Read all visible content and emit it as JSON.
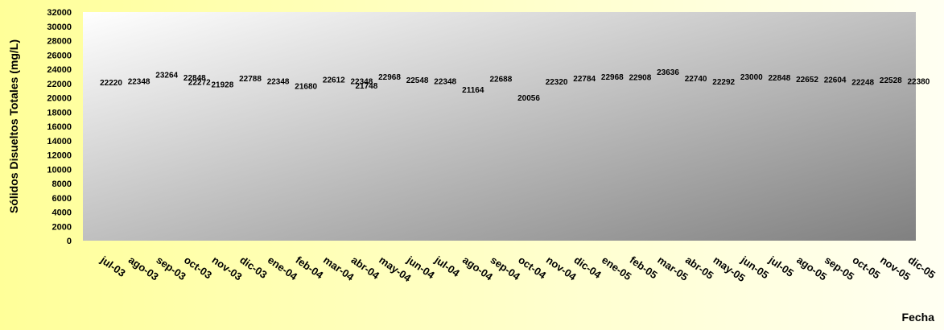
{
  "chart_data": {
    "type": "line",
    "title": "",
    "xlabel": "Fecha",
    "ylabel": "Sólidos Disueltos Totales (mg/L)",
    "ylim": [
      0,
      32000
    ],
    "yticks": [
      0,
      2000,
      4000,
      6000,
      8000,
      10000,
      12000,
      14000,
      16000,
      18000,
      20000,
      22000,
      24000,
      26000,
      28000,
      30000,
      32000
    ],
    "grid": false,
    "legend": "none",
    "categories": [
      "jul-03",
      "ago-03",
      "sep-03",
      "oct-03",
      "nov-03",
      "dic-03",
      "ene-04",
      "feb-04",
      "mar-04",
      "abr-04",
      "may-04",
      "jun-04",
      "jul-04",
      "ago-04",
      "sep-04",
      "oct-04",
      "nov-04",
      "dic-04",
      "ene-05",
      "feb-05",
      "mar-05",
      "abr-05",
      "may-05",
      "jun-05",
      "jul-05",
      "ago-05",
      "sep-05",
      "oct-05",
      "nov-05",
      "dic-05"
    ],
    "series": [
      {
        "x": [
          "jul-03",
          "ago-03",
          "sep-03",
          "oct-03",
          "oct-03",
          "nov-03",
          "dic-03",
          "ene-04",
          "feb-04",
          "mar-04",
          "abr-04",
          "abr-04",
          "may-04",
          "jun-04",
          "jul-04",
          "ago-04",
          "sep-04",
          "oct-04",
          "nov-04",
          "dic-04",
          "ene-05",
          "feb-05",
          "mar-05",
          "abr-05",
          "may-05",
          "jun-05",
          "jul-05",
          "ago-05",
          "sep-05",
          "oct-05",
          "nov-05",
          "dic-05"
        ],
        "values": [
          22220,
          22348,
          23264,
          22848,
          22272,
          21928,
          22788,
          22348,
          21680,
          22612,
          22348,
          21748,
          22968,
          22548,
          22348,
          21164,
          22688,
          20056,
          22320,
          22784,
          22968,
          22908,
          23636,
          22740,
          22292,
          23000,
          22848,
          22652,
          22604,
          22248,
          22528,
          22380
        ],
        "color": "#000000"
      }
    ],
    "plot_background": [
      "#ffffff",
      "#808080"
    ]
  }
}
